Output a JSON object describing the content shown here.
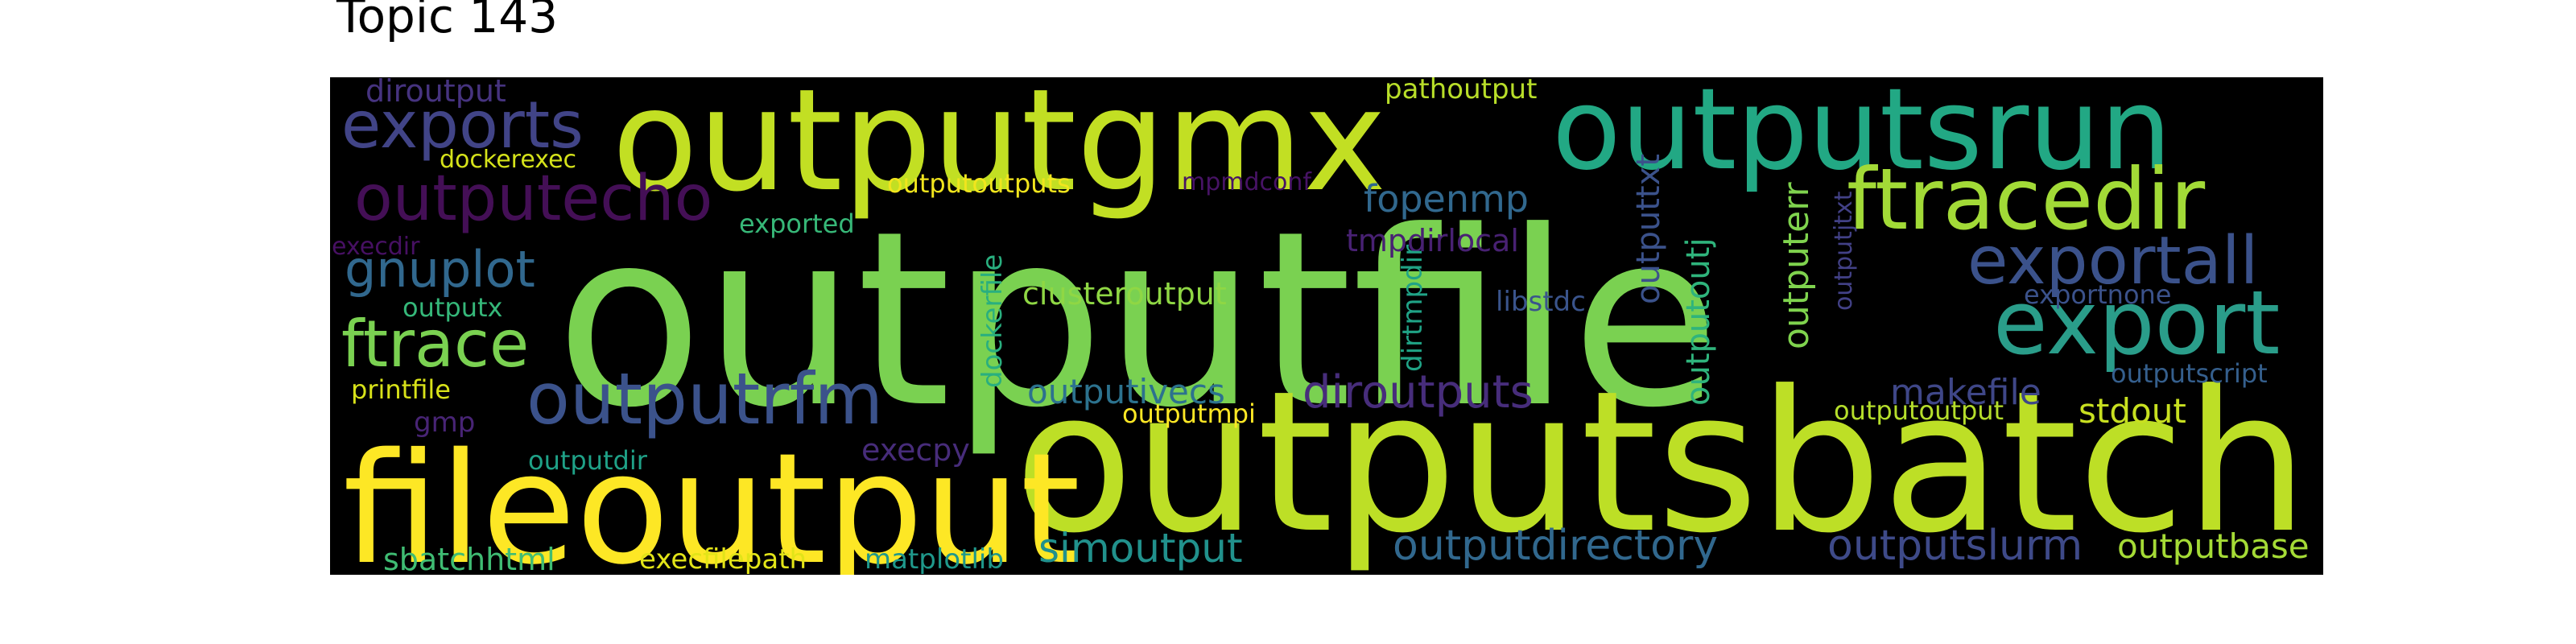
{
  "title": "Topic 143",
  "colors": {
    "background": "#000000",
    "palette": "viridis"
  },
  "words": [
    {
      "text": "outputfile",
      "color": "#7ad151"
    },
    {
      "text": "outputsbatch",
      "color": "#bddf26"
    },
    {
      "text": "fileoutput",
      "color": "#fde725"
    },
    {
      "text": "outputgmx",
      "color": "#c2df23"
    },
    {
      "text": "outputsrun",
      "color": "#22a884"
    },
    {
      "text": "ftracedir",
      "color": "#a2da37"
    },
    {
      "text": "export",
      "color": "#2a9d8a"
    },
    {
      "text": "exportall",
      "color": "#3b528b"
    },
    {
      "text": "outputrfm",
      "color": "#3b528b"
    },
    {
      "text": "exports",
      "color": "#414487"
    },
    {
      "text": "outputecho",
      "color": "#440f56"
    },
    {
      "text": "ftrace",
      "color": "#7ad151"
    },
    {
      "text": "gnuplot",
      "color": "#31688e"
    },
    {
      "text": "diroutputs",
      "color": "#472d7b"
    },
    {
      "text": "outputdirectory",
      "color": "#31688e"
    },
    {
      "text": "outputslurm",
      "color": "#3e4a89"
    },
    {
      "text": "simoutput",
      "color": "#21918c"
    },
    {
      "text": "outputivecs",
      "color": "#2c728e"
    },
    {
      "text": "fopenmp",
      "color": "#31688e"
    },
    {
      "text": "clusteroutput",
      "color": "#8fd744"
    },
    {
      "text": "tmpdirlocal",
      "color": "#482173"
    },
    {
      "text": "makefile",
      "color": "#3f4788"
    },
    {
      "text": "stdout",
      "color": "#c8e020"
    },
    {
      "text": "outputbase",
      "color": "#a5db36"
    },
    {
      "text": "exportnone",
      "color": "#3b528b"
    },
    {
      "text": "outputscript",
      "color": "#355f8d"
    },
    {
      "text": "outputoutput",
      "color": "#b5de2b"
    },
    {
      "text": "outputx",
      "color": "#35b779"
    },
    {
      "text": "printfile",
      "color": "#d8e219"
    },
    {
      "text": "gmp",
      "color": "#482475"
    },
    {
      "text": "outputdir",
      "color": "#1fa187"
    },
    {
      "text": "execpy",
      "color": "#472c7a"
    },
    {
      "text": "outputmpi",
      "color": "#fde725"
    },
    {
      "text": "sbatchhtml",
      "color": "#3fbc73"
    },
    {
      "text": "execfilepath",
      "color": "#e2e418"
    },
    {
      "text": "matplotlib",
      "color": "#1f988b"
    },
    {
      "text": "diroutput",
      "color": "#46337f"
    },
    {
      "text": "dockerexec",
      "color": "#d5e21a"
    },
    {
      "text": "exported",
      "color": "#37b878"
    },
    {
      "text": "outputoutputs",
      "color": "#f1e51d"
    },
    {
      "text": "mpmdconf",
      "color": "#471365"
    },
    {
      "text": "pathoutput",
      "color": "#b8de29"
    },
    {
      "text": "execdir",
      "color": "#471063"
    },
    {
      "text": "libstdc",
      "color": "#3a548c"
    },
    {
      "text": "dockerfile",
      "color": "#29af7f"
    },
    {
      "text": "dirtmpdir",
      "color": "#20a386"
    },
    {
      "text": "outputtxt",
      "color": "#3b528b"
    },
    {
      "text": "outputoutj",
      "color": "#2fb47c"
    },
    {
      "text": "outputerr",
      "color": "#7fd34e"
    },
    {
      "text": "outputjtxt",
      "color": "#424186"
    }
  ]
}
